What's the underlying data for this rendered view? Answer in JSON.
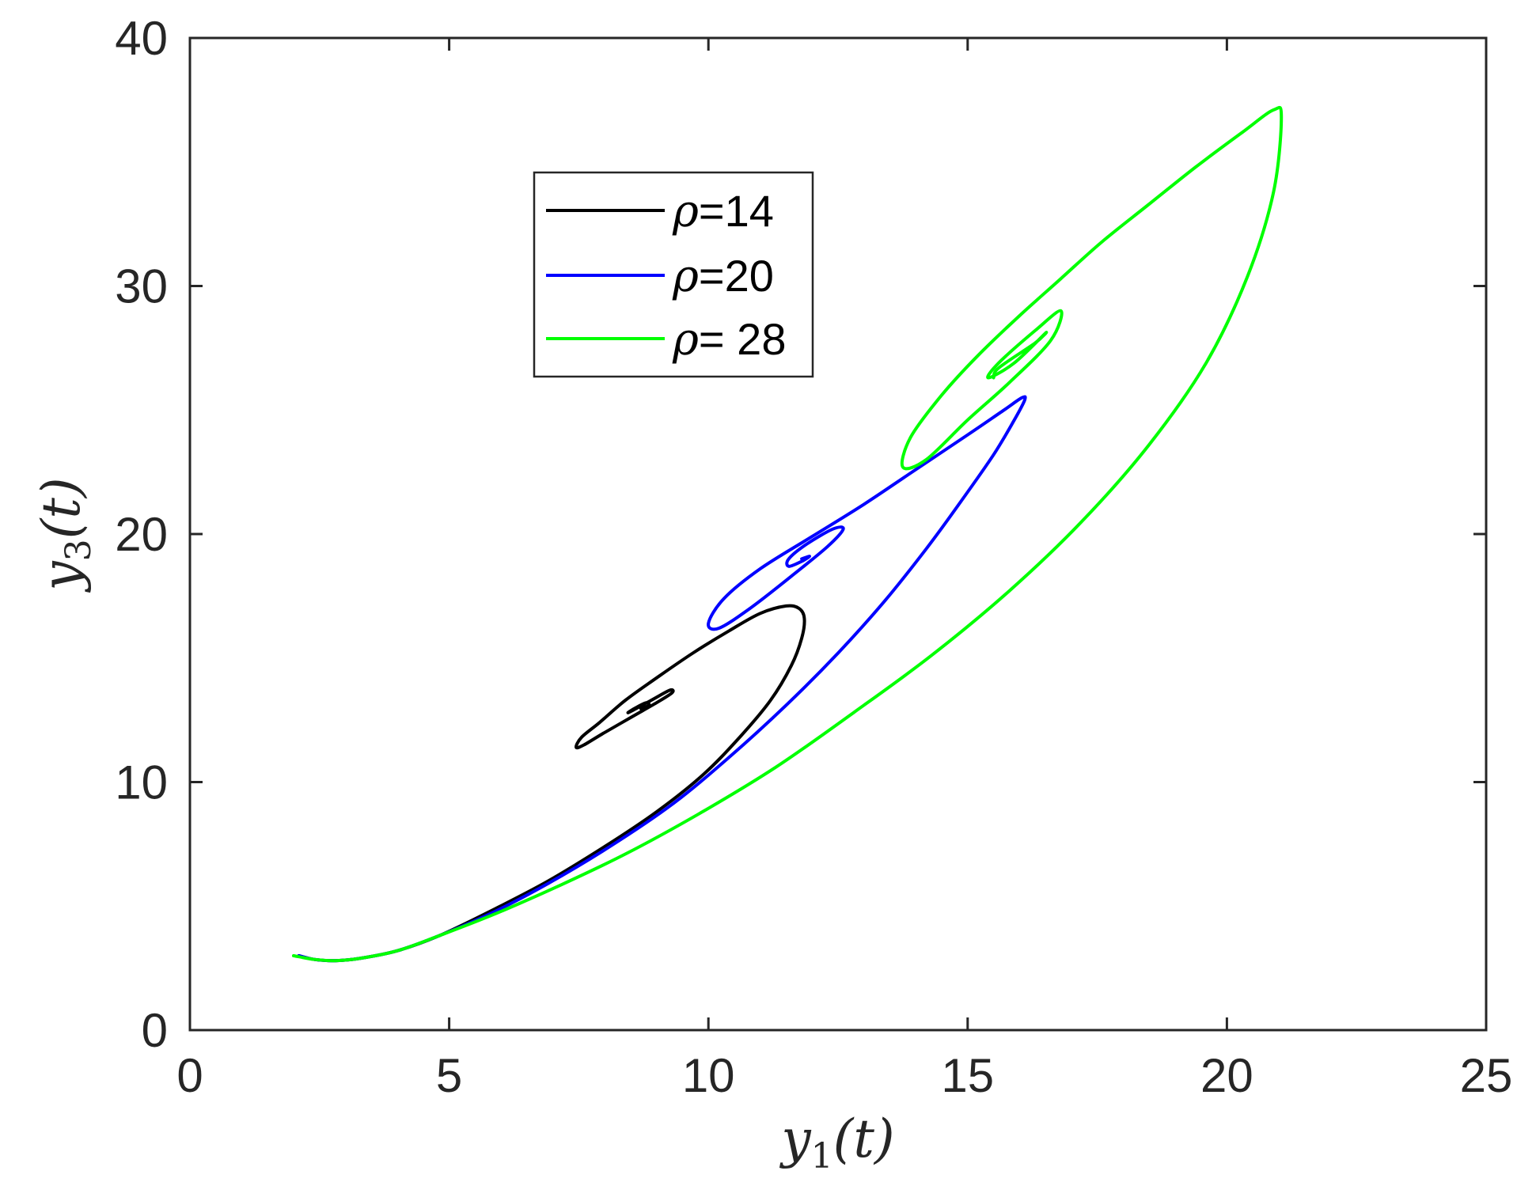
{
  "chart_data": {
    "type": "line",
    "title": "",
    "xlabel": {
      "base": "y",
      "sub": "1",
      "arg": "(t)"
    },
    "ylabel": {
      "base": "y",
      "sub": "3",
      "arg": "(t)"
    },
    "xlim": [
      0,
      25
    ],
    "ylim": [
      0,
      40
    ],
    "xticks": [
      "0",
      "5",
      "10",
      "15",
      "20",
      "25"
    ],
    "yticks": [
      "0",
      "10",
      "20",
      "30",
      "40"
    ],
    "grid": false,
    "legend_position": "upper-center",
    "series": [
      {
        "name": "ρ=14",
        "legend_symbol": "ρ",
        "legend_value": "=14",
        "color": "#000000",
        "x": [
          2.1,
          2.4,
          2.8,
          3.3,
          4.0,
          4.8,
          5.8,
          6.9,
          8.0,
          9.0,
          9.9,
          10.6,
          11.2,
          11.6,
          11.8,
          11.85,
          11.75,
          11.5,
          11.0,
          10.4,
          9.7,
          9.0,
          8.4,
          7.9,
          7.55,
          7.45,
          7.6,
          8.0,
          8.5,
          9.0,
          9.3,
          9.25,
          8.9,
          8.55,
          8.45,
          8.6,
          8.8,
          8.85,
          8.7
        ],
        "y": [
          3.0,
          2.85,
          2.8,
          2.9,
          3.2,
          3.8,
          4.8,
          6.0,
          7.4,
          8.8,
          10.3,
          11.8,
          13.3,
          14.7,
          15.8,
          16.6,
          17.0,
          17.1,
          16.8,
          16.1,
          15.2,
          14.2,
          13.3,
          12.4,
          11.8,
          11.4,
          11.5,
          12.0,
          12.6,
          13.2,
          13.6,
          13.7,
          13.3,
          12.9,
          12.8,
          13.0,
          13.2,
          13.1,
          12.95
        ]
      },
      {
        "name": "ρ=20",
        "legend_symbol": "ρ",
        "legend_value": "=20",
        "color": "#0000ff",
        "x": [
          2.1,
          2.4,
          2.8,
          3.3,
          4.0,
          4.8,
          5.8,
          6.9,
          8.1,
          9.3,
          10.4,
          11.5,
          12.5,
          13.4,
          14.2,
          14.9,
          15.5,
          15.9,
          16.1,
          16.05,
          15.7,
          15.0,
          14.0,
          13.0,
          12.0,
          11.0,
          10.3,
          10.0,
          10.2,
          10.8,
          11.6,
          12.3,
          12.6,
          12.4,
          11.9,
          11.55,
          11.55,
          11.8,
          11.95,
          11.8
        ],
        "y": [
          3.0,
          2.85,
          2.8,
          2.9,
          3.2,
          3.8,
          4.7,
          5.9,
          7.4,
          9.1,
          11.0,
          13.1,
          15.2,
          17.3,
          19.4,
          21.4,
          23.2,
          24.6,
          25.4,
          25.5,
          25.0,
          24.0,
          22.6,
          21.2,
          19.9,
          18.6,
          17.4,
          16.4,
          16.2,
          17.0,
          18.3,
          19.5,
          20.2,
          20.2,
          19.6,
          19.0,
          18.7,
          18.9,
          19.1,
          19.0
        ]
      },
      {
        "name": "ρ= 28",
        "legend_symbol": "ρ",
        "legend_value": "= 28",
        "color": "#00ff00",
        "x": [
          2.0,
          2.4,
          2.8,
          3.3,
          4.0,
          4.8,
          5.9,
          7.1,
          8.4,
          9.8,
          11.3,
          12.8,
          14.3,
          15.8,
          17.2,
          18.5,
          19.6,
          20.4,
          20.9,
          21.05,
          20.9,
          20.3,
          19.4,
          18.5,
          17.6,
          16.8,
          16.0,
          15.2,
          14.5,
          13.9,
          13.75,
          14.2,
          15.0,
          15.8,
          16.6,
          16.8,
          16.3,
          15.6,
          15.4,
          15.9,
          16.5,
          16.3,
          15.6,
          15.5
        ],
        "y": [
          3.0,
          2.85,
          2.8,
          2.9,
          3.2,
          3.8,
          4.7,
          5.8,
          7.1,
          8.7,
          10.6,
          12.8,
          15.1,
          17.7,
          20.5,
          23.6,
          26.9,
          30.4,
          33.8,
          36.8,
          37.1,
          36.2,
          34.8,
          33.3,
          31.8,
          30.3,
          28.8,
          27.2,
          25.6,
          23.9,
          22.7,
          23.0,
          24.6,
          26.1,
          27.8,
          29.0,
          28.2,
          26.9,
          26.3,
          26.9,
          28.1,
          27.7,
          26.7,
          26.3
        ]
      }
    ]
  }
}
